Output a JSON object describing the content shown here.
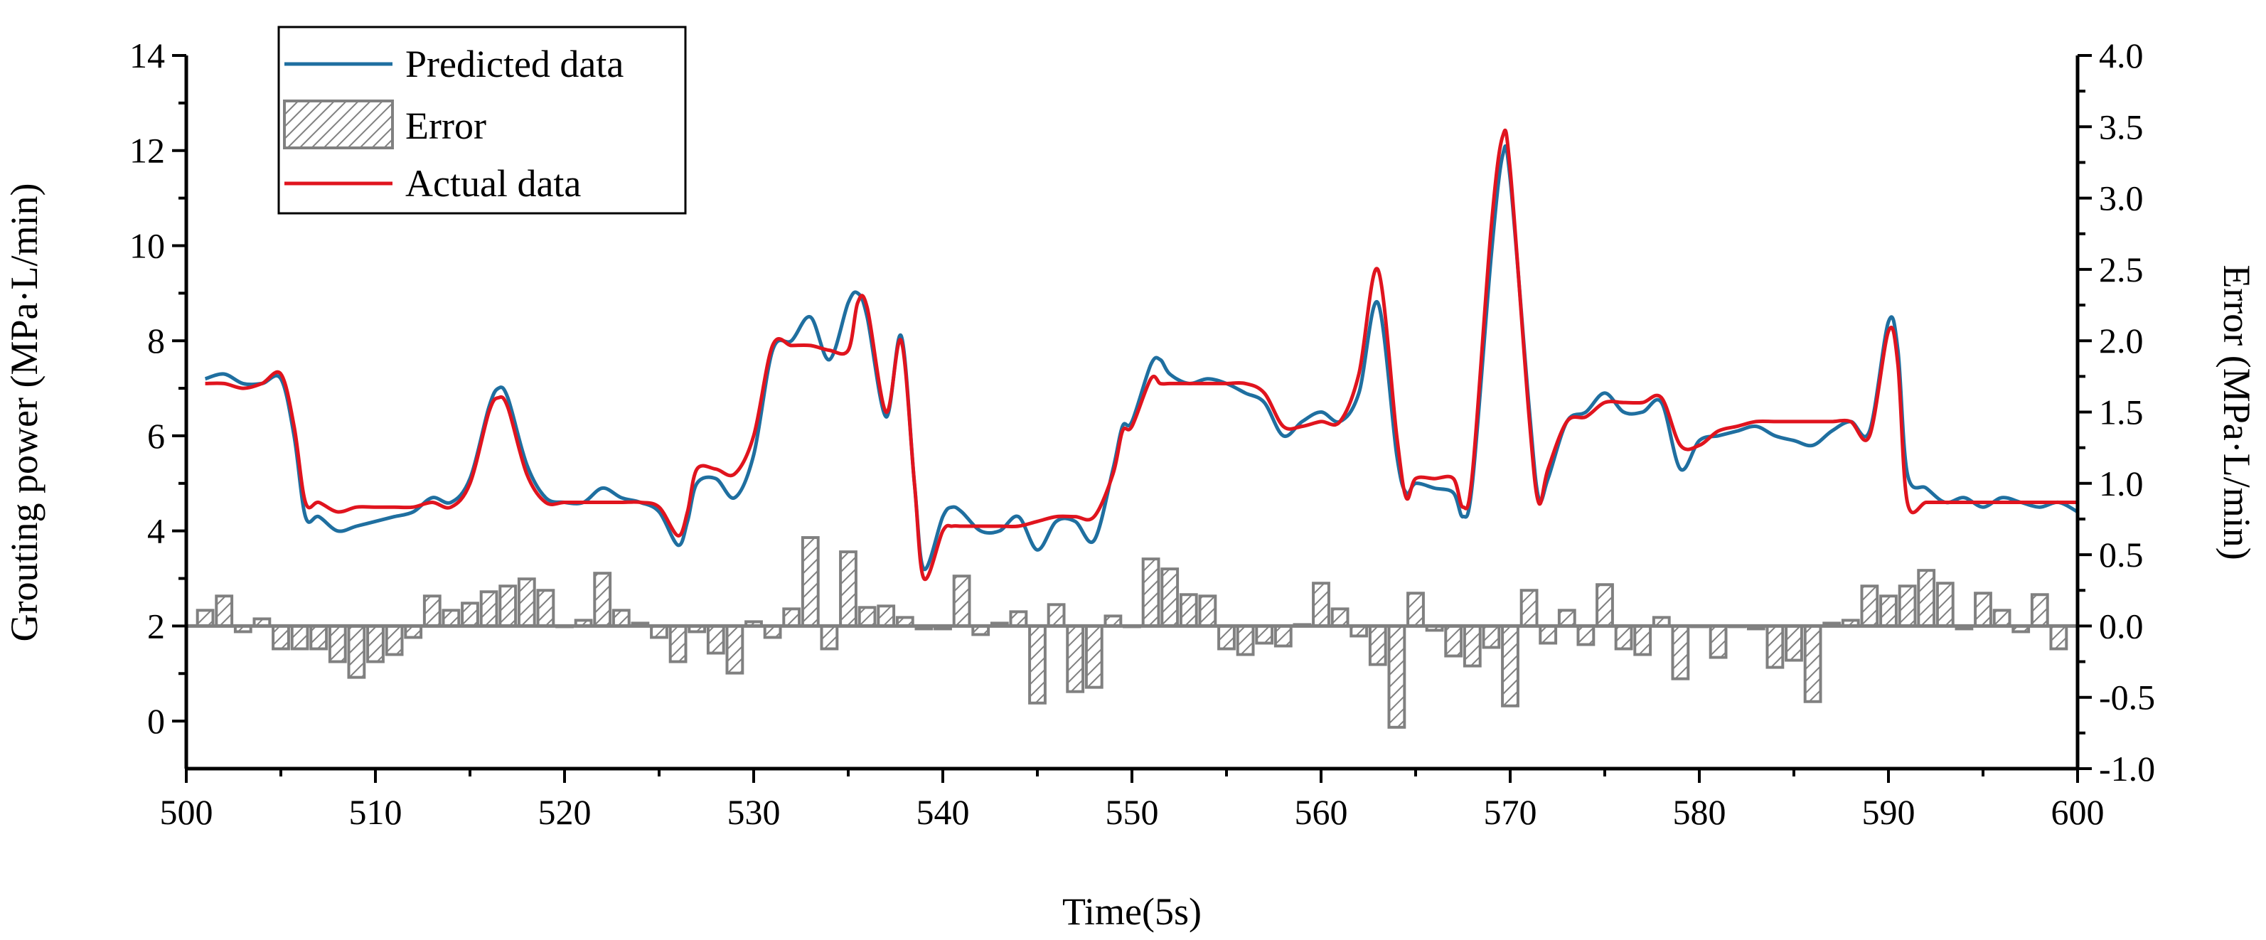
{
  "chart_data": {
    "type": "line",
    "title": "",
    "xlabel": "Time(5s)",
    "ylabel": "Grouting power (MPa·L/min)",
    "y2label": "Error (MPa·L/min)",
    "xlim": [
      500,
      600
    ],
    "ylim": [
      -1,
      14
    ],
    "y2lim": [
      -1.0,
      4.0
    ],
    "x_ticks": [
      "500",
      "510",
      "520",
      "530",
      "540",
      "550",
      "560",
      "570",
      "580",
      "590",
      "600"
    ],
    "y_ticks": [
      "0",
      "2",
      "4",
      "6",
      "8",
      "10",
      "12",
      "14"
    ],
    "y2_ticks": [
      "-1.0",
      "-0.5",
      "0.0",
      "0.5",
      "1.0",
      "1.5",
      "2.0",
      "2.5",
      "3.0",
      "3.5",
      "4.0"
    ],
    "grid": false,
    "legend_position": "top-left",
    "legend": [
      "Predicted data",
      "Error",
      "Actual data"
    ],
    "colors": {
      "predicted": "#1f6fa0",
      "actual": "#e0141e",
      "error": "#808080"
    },
    "series": [
      {
        "name": "Predicted data",
        "axis": "left",
        "points": [
          [
            501,
            7.2
          ],
          [
            502,
            7.3
          ],
          [
            503,
            7.1
          ],
          [
            504,
            7.1
          ],
          [
            505,
            7.2
          ],
          [
            505.7,
            6.0
          ],
          [
            506.3,
            4.3
          ],
          [
            507,
            4.3
          ],
          [
            508,
            4.0
          ],
          [
            509,
            4.1
          ],
          [
            510,
            4.2
          ],
          [
            511,
            4.3
          ],
          [
            512,
            4.4
          ],
          [
            513,
            4.7
          ],
          [
            514,
            4.6
          ],
          [
            515,
            5.1
          ],
          [
            516,
            6.6
          ],
          [
            516.5,
            7.0
          ],
          [
            517,
            6.8
          ],
          [
            518,
            5.4
          ],
          [
            519,
            4.7
          ],
          [
            520,
            4.6
          ],
          [
            521,
            4.6
          ],
          [
            522,
            4.9
          ],
          [
            523,
            4.7
          ],
          [
            524,
            4.6
          ],
          [
            525,
            4.4
          ],
          [
            526,
            3.7
          ],
          [
            526.5,
            4.2
          ],
          [
            527,
            5.0
          ],
          [
            528,
            5.1
          ],
          [
            529,
            4.7
          ],
          [
            530,
            5.6
          ],
          [
            531,
            7.8
          ],
          [
            532,
            8.0
          ],
          [
            533,
            8.5
          ],
          [
            534,
            7.6
          ],
          [
            535,
            8.8
          ],
          [
            535.5,
            9.0
          ],
          [
            536,
            8.5
          ],
          [
            537,
            6.4
          ],
          [
            537.8,
            8.1
          ],
          [
            538.5,
            5.0
          ],
          [
            539,
            3.2
          ],
          [
            540,
            4.3
          ],
          [
            540.5,
            4.5
          ],
          [
            541,
            4.4
          ],
          [
            542,
            4.0
          ],
          [
            543,
            4.0
          ],
          [
            544,
            4.3
          ],
          [
            545,
            3.6
          ],
          [
            546,
            4.2
          ],
          [
            547,
            4.2
          ],
          [
            548,
            3.8
          ],
          [
            549,
            5.3
          ],
          [
            549.5,
            6.2
          ],
          [
            550,
            6.3
          ],
          [
            551,
            7.5
          ],
          [
            551.5,
            7.6
          ],
          [
            552,
            7.3
          ],
          [
            553,
            7.1
          ],
          [
            554,
            7.2
          ],
          [
            555,
            7.1
          ],
          [
            556,
            6.9
          ],
          [
            557,
            6.7
          ],
          [
            558,
            6.0
          ],
          [
            559,
            6.3
          ],
          [
            560,
            6.5
          ],
          [
            561,
            6.3
          ],
          [
            562,
            6.9
          ],
          [
            563,
            8.8
          ],
          [
            564,
            5.6
          ],
          [
            564.5,
            4.8
          ],
          [
            565,
            5.0
          ],
          [
            566,
            4.9
          ],
          [
            567,
            4.8
          ],
          [
            567.5,
            4.3
          ],
          [
            568,
            5.0
          ],
          [
            569,
            9.8
          ],
          [
            569.6,
            11.9
          ],
          [
            570,
            11.4
          ],
          [
            571,
            6.6
          ],
          [
            571.5,
            4.7
          ],
          [
            572,
            5.1
          ],
          [
            573,
            6.3
          ],
          [
            574,
            6.5
          ],
          [
            575,
            6.9
          ],
          [
            576,
            6.5
          ],
          [
            577,
            6.5
          ],
          [
            578,
            6.7
          ],
          [
            579,
            5.3
          ],
          [
            580,
            5.9
          ],
          [
            581,
            6.0
          ],
          [
            582,
            6.1
          ],
          [
            583,
            6.2
          ],
          [
            584,
            6.0
          ],
          [
            585,
            5.9
          ],
          [
            586,
            5.8
          ],
          [
            587,
            6.1
          ],
          [
            588,
            6.3
          ],
          [
            589,
            6.1
          ],
          [
            590,
            8.4
          ],
          [
            590.5,
            7.8
          ],
          [
            591,
            5.2
          ],
          [
            592,
            4.9
          ],
          [
            593,
            4.6
          ],
          [
            594,
            4.7
          ],
          [
            595,
            4.5
          ],
          [
            596,
            4.7
          ],
          [
            597,
            4.6
          ],
          [
            598,
            4.5
          ],
          [
            599,
            4.6
          ],
          [
            600,
            4.4
          ]
        ]
      },
      {
        "name": "Actual data",
        "axis": "left",
        "points": [
          [
            501,
            7.1
          ],
          [
            502,
            7.1
          ],
          [
            503,
            7.0
          ],
          [
            504,
            7.1
          ],
          [
            505,
            7.3
          ],
          [
            505.7,
            6.2
          ],
          [
            506.3,
            4.6
          ],
          [
            507,
            4.6
          ],
          [
            508,
            4.4
          ],
          [
            509,
            4.5
          ],
          [
            510,
            4.5
          ],
          [
            511,
            4.5
          ],
          [
            512,
            4.5
          ],
          [
            513,
            4.6
          ],
          [
            514,
            4.5
          ],
          [
            515,
            5.0
          ],
          [
            516,
            6.5
          ],
          [
            516.5,
            6.8
          ],
          [
            517,
            6.6
          ],
          [
            518,
            5.2
          ],
          [
            519,
            4.6
          ],
          [
            520,
            4.6
          ],
          [
            521,
            4.6
          ],
          [
            522,
            4.6
          ],
          [
            523,
            4.6
          ],
          [
            524,
            4.6
          ],
          [
            525,
            4.5
          ],
          [
            526,
            3.9
          ],
          [
            526.5,
            4.4
          ],
          [
            527,
            5.3
          ],
          [
            528,
            5.3
          ],
          [
            529,
            5.2
          ],
          [
            530,
            6.0
          ],
          [
            531,
            7.9
          ],
          [
            532,
            7.9
          ],
          [
            533,
            7.9
          ],
          [
            534,
            7.8
          ],
          [
            535,
            7.8
          ],
          [
            535.5,
            8.8
          ],
          [
            536,
            8.7
          ],
          [
            537,
            6.5
          ],
          [
            537.8,
            8.0
          ],
          [
            538.5,
            5.0
          ],
          [
            539,
            3.0
          ],
          [
            540,
            4.0
          ],
          [
            540.5,
            4.1
          ],
          [
            541,
            4.1
          ],
          [
            542,
            4.1
          ],
          [
            543,
            4.1
          ],
          [
            544,
            4.1
          ],
          [
            545,
            4.2
          ],
          [
            546,
            4.3
          ],
          [
            547,
            4.3
          ],
          [
            548,
            4.3
          ],
          [
            549,
            5.2
          ],
          [
            549.5,
            6.1
          ],
          [
            550,
            6.2
          ],
          [
            551,
            7.2
          ],
          [
            551.5,
            7.1
          ],
          [
            552,
            7.1
          ],
          [
            553,
            7.1
          ],
          [
            554,
            7.1
          ],
          [
            555,
            7.1
          ],
          [
            556,
            7.1
          ],
          [
            557,
            6.9
          ],
          [
            558,
            6.2
          ],
          [
            559,
            6.2
          ],
          [
            560,
            6.3
          ],
          [
            561,
            6.3
          ],
          [
            562,
            7.3
          ],
          [
            563,
            9.5
          ],
          [
            564,
            6.0
          ],
          [
            564.5,
            4.7
          ],
          [
            565,
            5.1
          ],
          [
            566,
            5.1
          ],
          [
            567,
            5.1
          ],
          [
            567.5,
            4.5
          ],
          [
            568,
            5.2
          ],
          [
            569,
            10.4
          ],
          [
            569.6,
            12.3
          ],
          [
            570,
            11.6
          ],
          [
            571,
            6.4
          ],
          [
            571.5,
            4.6
          ],
          [
            572,
            5.3
          ],
          [
            573,
            6.3
          ],
          [
            574,
            6.4
          ],
          [
            575,
            6.7
          ],
          [
            576,
            6.7
          ],
          [
            577,
            6.7
          ],
          [
            578,
            6.8
          ],
          [
            579,
            5.8
          ],
          [
            580,
            5.8
          ],
          [
            581,
            6.1
          ],
          [
            582,
            6.2
          ],
          [
            583,
            6.3
          ],
          [
            584,
            6.3
          ],
          [
            585,
            6.3
          ],
          [
            586,
            6.3
          ],
          [
            587,
            6.3
          ],
          [
            588,
            6.3
          ],
          [
            589,
            6.0
          ],
          [
            590,
            8.2
          ],
          [
            590.5,
            7.5
          ],
          [
            591,
            4.6
          ],
          [
            592,
            4.6
          ],
          [
            593,
            4.6
          ],
          [
            594,
            4.6
          ],
          [
            595,
            4.6
          ],
          [
            596,
            4.6
          ],
          [
            597,
            4.6
          ],
          [
            598,
            4.6
          ],
          [
            599,
            4.6
          ],
          [
            600,
            4.6
          ]
        ]
      },
      {
        "name": "Error",
        "axis": "right",
        "type": "bar",
        "x": [
          501,
          502,
          503,
          504,
          505,
          506,
          507,
          508,
          509,
          510,
          511,
          512,
          513,
          514,
          515,
          516,
          517,
          518,
          519,
          520,
          521,
          522,
          523,
          524,
          525,
          526,
          527,
          528,
          529,
          530,
          531,
          532,
          533,
          534,
          535,
          536,
          537,
          538,
          539,
          540,
          541,
          542,
          543,
          544,
          545,
          546,
          547,
          548,
          549,
          550,
          551,
          552,
          553,
          554,
          555,
          556,
          557,
          558,
          559,
          560,
          561,
          562,
          563,
          564,
          565,
          566,
          567,
          568,
          569,
          570,
          571,
          572,
          573,
          574,
          575,
          576,
          577,
          578,
          579,
          580,
          581,
          582,
          583,
          584,
          585,
          586,
          587,
          588,
          589,
          590,
          591,
          592,
          593,
          594,
          595,
          596,
          597,
          598,
          599
        ],
        "values": [
          0.11,
          0.21,
          -0.04,
          0.05,
          -0.16,
          -0.16,
          -0.16,
          -0.25,
          -0.36,
          -0.25,
          -0.2,
          -0.08,
          0.21,
          0.11,
          0.16,
          0.24,
          0.28,
          0.33,
          0.25,
          0.0,
          0.04,
          0.37,
          0.11,
          0.02,
          -0.08,
          -0.25,
          -0.04,
          -0.19,
          -0.33,
          0.03,
          -0.08,
          0.12,
          0.62,
          -0.16,
          0.52,
          0.13,
          0.14,
          0.06,
          -0.02,
          -0.02,
          0.35,
          -0.06,
          0.02,
          0.1,
          -0.54,
          0.15,
          -0.46,
          -0.43,
          0.07,
          0.0,
          0.47,
          0.4,
          0.22,
          0.21,
          -0.16,
          -0.2,
          -0.12,
          -0.14,
          0.01,
          0.3,
          0.12,
          -0.07,
          -0.27,
          -0.71,
          0.23,
          -0.03,
          -0.21,
          -0.28,
          -0.15,
          -0.56,
          0.25,
          -0.12,
          0.11,
          -0.13,
          0.29,
          -0.16,
          -0.2,
          0.06,
          -0.37,
          0.0,
          -0.22,
          0.0,
          -0.02,
          -0.29,
          -0.24,
          -0.53,
          0.02,
          0.04,
          0.28,
          0.21,
          0.28,
          0.39,
          0.3,
          -0.02,
          0.23,
          0.11,
          -0.04,
          0.22,
          -0.16
        ]
      }
    ]
  }
}
